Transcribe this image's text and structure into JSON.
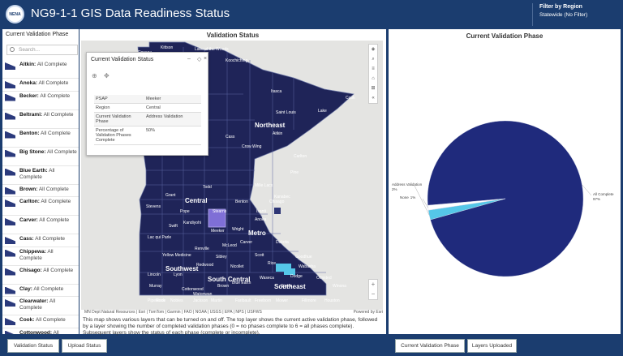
{
  "header": {
    "logo_text": "NENA",
    "title": "NG9-1-1 GIS Data Readiness Status",
    "filter_title": "Filter by Region",
    "filter_value": "Statewide (No Filter)"
  },
  "left_panel": {
    "title": "Current Validation Phase",
    "search_placeholder": "Search...",
    "items": [
      {
        "county": "Aitkin:",
        "status": "All Complete"
      },
      {
        "county": "Anoka:",
        "status": "All Complete"
      },
      {
        "county": "Becker:",
        "status": "All Complete"
      },
      {
        "county": "Beltrami:",
        "status": "All Complete"
      },
      {
        "county": "Benton:",
        "status": "All Complete"
      },
      {
        "county": "Big Stone:",
        "status": "All Complete"
      },
      {
        "county": "Blue Earth:",
        "status": "All Complete"
      },
      {
        "county": "Brown:",
        "status": "All Complete"
      },
      {
        "county": "Carlton:",
        "status": "All Complete"
      },
      {
        "county": "Carver:",
        "status": "All Complete"
      },
      {
        "county": "Cass:",
        "status": "All Complete"
      },
      {
        "county": "Chippewa:",
        "status": "All Complete"
      },
      {
        "county": "Chisago:",
        "status": "All Complete"
      },
      {
        "county": "Clay:",
        "status": "All Complete"
      },
      {
        "county": "Clearwater:",
        "status": "All Complete"
      },
      {
        "county": "Cook:",
        "status": "All Complete"
      },
      {
        "county": "Cottonwood:",
        "status": "All Complete"
      },
      {
        "county": "Crow Wing:",
        "status": "All Complete"
      }
    ]
  },
  "map_panel": {
    "title": "Validation Status",
    "attribution": "MN Dept Natural Resources | Esri | TomTom | Garmin | FAO | NOAA | USGS | EPA | NPS | USFWS",
    "powered_by": "Powered by Esri",
    "description": "This map shows various layers that can be turned on and off. The top layer shows the current active validation phase, followed by a layer showing the number of completed validation phases (0 = no phases complete to 6 = all phases complete). Subsequent layers show the status of each phase (complete or incomplete).",
    "regions": [
      "Northwest",
      "Northeast",
      "Central",
      "Metro",
      "Southwest",
      "South Central",
      "Southeast"
    ],
    "counties": [
      "Roseau",
      "Kittson",
      "Lake of the Woods",
      "Koochiching",
      "Cook",
      "Lake",
      "Itasca",
      "Saint Louis",
      "Beltrami",
      "Cass",
      "Aitkin",
      "Carlton",
      "Crow Wing",
      "Pine",
      "Todd",
      "Mille Lacs",
      "Kanabec",
      "Grant",
      "Stevens",
      "Pope",
      "Stearns",
      "Benton",
      "Isanti",
      "Chisago",
      "Swift",
      "Kandiyohi",
      "Meeker",
      "Wright",
      "Anoka",
      "Lac qui Parle",
      "Renville",
      "McLeod",
      "Carver",
      "Dakota",
      "Yellow Medicine",
      "Sibley",
      "Scott",
      "Goodhue",
      "Lincoln",
      "Lyon",
      "Redwood",
      "Nicollet",
      "Rice",
      "Wabasha",
      "Murray",
      "Cottonwood",
      "Brown",
      "Waseca",
      "Dodge",
      "Olmsted",
      "Winona",
      "Pipestone",
      "Watonwan",
      "Blue Earth",
      "Steele",
      "Rock",
      "Nobles",
      "Jackson",
      "Martin",
      "Faribault",
      "Freeborn",
      "Mower",
      "Fillmore",
      "Houston"
    ],
    "popup": {
      "title": "Current Validation Status",
      "rows": [
        {
          "label": "PSAP",
          "value": "Meeker"
        },
        {
          "label": "Region",
          "value": "Central"
        },
        {
          "label": "Current Validation Phase",
          "value": "Address Validation"
        },
        {
          "label": "Percentage of Validation Phases Complete",
          "value": "50%"
        }
      ]
    }
  },
  "pie_panel": {
    "title": "Current Validation Phase",
    "chart_data": {
      "type": "pie",
      "title": "Current Validation Phase",
      "slices": [
        {
          "label": "All Complete",
          "percent_label": "97%",
          "value": 97,
          "color": "#1f2a7c"
        },
        {
          "label": "Address Validation",
          "percent_label": "2%",
          "value": 2,
          "color": "#55c7e8"
        },
        {
          "label": "None",
          "percent_label": "1%",
          "value": 1,
          "color": "#ffffff"
        }
      ]
    }
  },
  "footer": {
    "tab_validation_status": "Validation Status",
    "tab_upload_status": "Upload Status",
    "tab_current_phase": "Current Validation Phase",
    "tab_layers_uploaded": "Layers Uploaded"
  },
  "colors": {
    "header_bg": "#1b3d6f",
    "map_fill": "#1f2458",
    "selected_county": "#7f6fd6",
    "address_validation": "#55c7e8"
  }
}
